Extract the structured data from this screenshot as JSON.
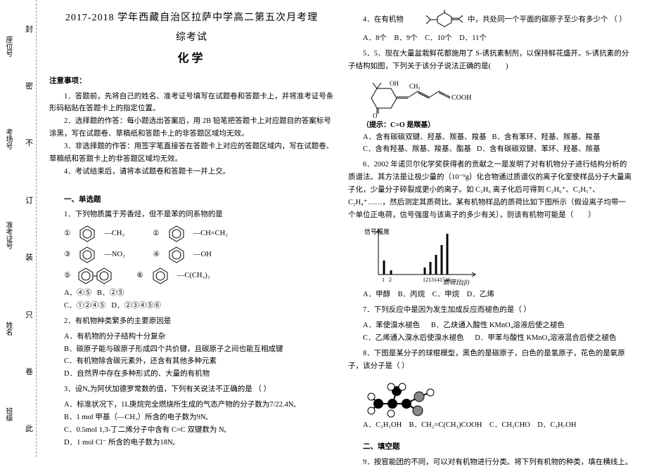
{
  "binding": {
    "leftLabels": [
      "班级",
      "姓名",
      "准考证号",
      "考场号",
      "座位号"
    ],
    "rightChars": [
      "此",
      "卷",
      "只",
      "装",
      "订",
      "不",
      "密",
      "封"
    ]
  },
  "header": {
    "line1": "2017-2018 学年西藏自治区拉萨中学高二第五次月考理",
    "line2": "综考试",
    "subject": "化学"
  },
  "notice": {
    "title": "注意事项：",
    "items": [
      "1．答题前，先将自己的姓名、准考证号填写在试题卷和答题卡上，并将准考证号条形码粘贴在答题卡上的指定位置。",
      "2．选择题的作答：每小题选出答案后，用 2B 铅笔把答题卡上对应题目的答案标号涂黑，写在试题卷、草稿纸和答题卡上的非答题区域均无效。",
      "3．非选择题的作答：用签字笔直接答在答题卡上对应的答题区域内，写在试题卷、草稿纸和答题卡上的非答题区域均无效。",
      "4．考试结束后，请将本试题卷和答题卡一并上交。"
    ]
  },
  "sectionA": "一、单选题",
  "q1": {
    "stem": "1．下列物质属于芳香烃，但不是苯的同系物的是",
    "labels": [
      "①",
      "②",
      "③",
      "④",
      "⑤",
      "⑥"
    ],
    "rlabels": [
      "—CH₃",
      "—CH=CH₂",
      "—NO₂",
      "—OH",
      "",
      "—C(CH₃)₃"
    ],
    "optA": "A．④⑤",
    "optB": "B．②⑤",
    "optC": "C．①②④⑤",
    "optD": "D．②③④⑤⑥"
  },
  "q2": {
    "stem": "2．有机物种类繁多的主要原因是",
    "A": "A．有机物的分子结构十分复杂",
    "B": "B．碳原子能与碳原子形成四个共价键，且碳原子之间也能互相成键",
    "C": "C．有机物除含碳元素外，还含有其他多种元素",
    "D": "D．自然界中存在多种形式的、大量的有机物"
  },
  "q3": {
    "stem": "3．设Nₐ为阿伏加德罗常数的值，下列有关说法不正确的是   （    ）",
    "A": "A．标准状况下，1L庚烷完全燃烧所生成的气态产物的分子数为7/22.4Nₐ",
    "B": "B．1 mol 甲基（—CH₃）所含的电子数为9Nₐ",
    "C": "C．0.5mol 1,3-丁二烯分子中含有 C=C 双键数为 Nₐ",
    "D": "D．1 mol Cl⁻ 所含的电子数为18Nₐ"
  },
  "q4": {
    "stem": "4．在有机物",
    "tail": "中，共处同一个平面的碳原子至少有多少个  （    ）",
    "A": "A．8个",
    "B": "B．9个",
    "C": "C．10个",
    "D": "D．11个"
  },
  "q5": {
    "stem": "5．5．现在大量盆栽鲜花都施用了 S-诱抗素制剂，以保持鲜花盛开。S-诱抗素的分子结构如图，下列关于该分子说法正确的是(　　)",
    "note": "（提示：C=O 是羰基）",
    "A": "A．含有碳碳双键、羟基、羰基、羧基",
    "B": "B．含有苯环、羟基、羰基、羧基",
    "C": "C．含有羟基、羰基、羧基、酯基",
    "D": "D．含有碳碳双键、苯环、羟基、羰基"
  },
  "q6": {
    "stem": "6．2002 年诺贝尔化学奖获得者的贡献之一是发明了对有机物分子进行结构分析的质谱法。其方法是让极少量的（10⁻⁹g）化合物通过质谱仪的离子化室使样品分子大量离子化，少量分子碎裂成更小的离子。如 C₂H₆ 离子化后可得到 C₂H₆⁺、C₂H₅⁺、C₂H₄⁺……，然后测定其质荷比。某有机物样品的质荷比如下图所示（假设离子均带一个单位正电荷，信号强度与该离子的多少有关），则该有机物可能是（　　）",
    "chart": {
      "type": "bar",
      "xLabel": "质荷比(β)",
      "yLabel": "信号强度",
      "xTicks": [
        "1",
        "2",
        "12",
        "13",
        "14",
        "15",
        "16"
      ],
      "values": [
        20,
        6,
        10,
        18,
        28,
        42,
        58
      ],
      "bar_color": "#000000",
      "axis_color": "#000000",
      "bg": "#ffffff",
      "xlim": [
        0,
        18
      ],
      "ylim": [
        0,
        60
      ],
      "width": 150,
      "height": 80
    },
    "A": "A．甲醇",
    "B": "B．丙烷",
    "C": "C．甲烷",
    "D": "D．乙烯"
  },
  "q7": {
    "stem": "7．下列反应中是因为发生加成反应而褪色的是（    ）",
    "A": "A．苯使溴水褪色",
    "B": "B．乙炔通入酸性 KMnO₄溶液后使之褪色",
    "C": "C．乙烯通入溴水后使溴水褪色",
    "D": "D．甲苯与酸性 KMnO₄溶液混合后使之褪色"
  },
  "q8": {
    "stem": "8．下图是某分子的球棍模型，黑色的是碳原子，白色的是氢原子，花色的是氧原子，该分子是（    ）",
    "A": "A．C₂H₅OH",
    "B": "B．CH₂=C(CH₃)COOH",
    "C": "C．CH₃CHO",
    "D": "D．C₃H₇OH"
  },
  "sectionB": "二、填空题",
  "q9": "9．按官能团的不同，可以对有机物进行分类。将下列有机物的种类，填在横线上。"
}
